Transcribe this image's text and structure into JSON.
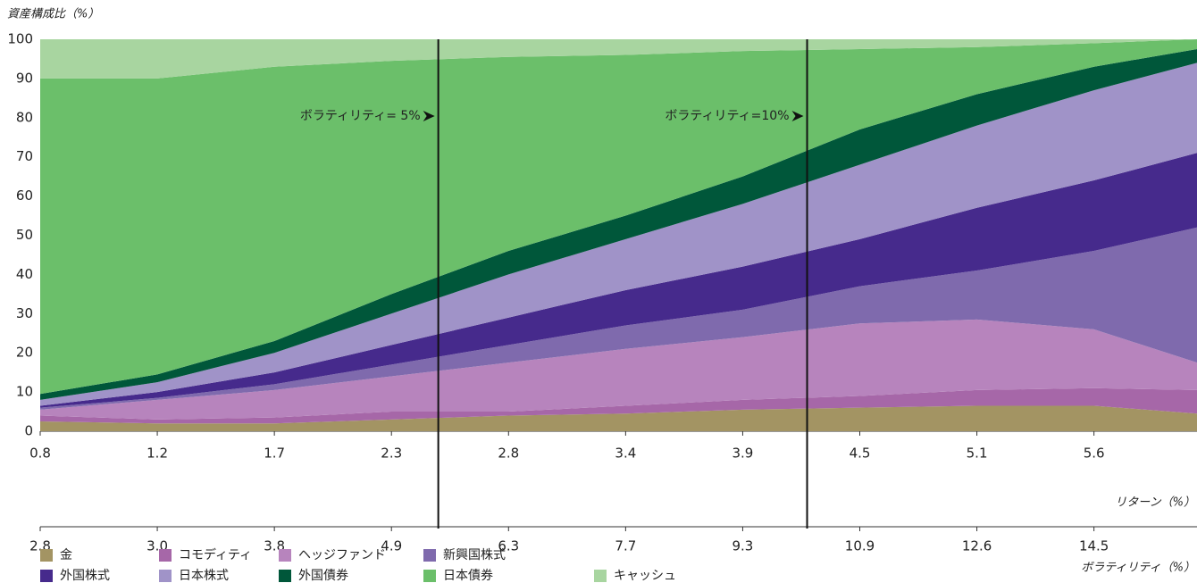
{
  "chart_data": {
    "type": "stacked_area",
    "y_label": "資産構成比（%）",
    "x_label": "リターン（%）",
    "x2_label": "ボラティリティ（%）",
    "categories": [
      "0.8",
      "1.2",
      "1.7",
      "2.3",
      "2.8",
      "3.4",
      "3.9",
      "4.5",
      "5.1",
      "5.6",
      null
    ],
    "x2_categories": [
      "2.8",
      "3.0",
      "3.8",
      "4.9",
      "6.3",
      "7.7",
      "9.3",
      "10.9",
      "12.6",
      "14.5",
      null
    ],
    "x": [
      0,
      1,
      2,
      3,
      4,
      5,
      6,
      7,
      8,
      9,
      9.88
    ],
    "xlim": [
      0,
      9.88
    ],
    "ylim": [
      0,
      100
    ],
    "yticks": [
      0,
      10,
      20,
      30,
      40,
      50,
      60,
      70,
      80,
      90,
      100
    ],
    "annotations": [
      {
        "text": "ボラティリティ= 5%",
        "x": 3.4
      },
      {
        "text": "ボラティリティ=10%",
        "x": 6.55
      }
    ],
    "series": [
      {
        "name": "金",
        "color": "#a39463",
        "values": [
          2.5,
          2,
          2,
          3,
          4,
          4.5,
          5.5,
          6,
          6.5,
          6.5,
          4.5
        ]
      },
      {
        "name": "コモディティ",
        "color": "#a667a8",
        "values": [
          1.5,
          1,
          1.5,
          2,
          1,
          2,
          2.5,
          3,
          4,
          4.5,
          6
        ]
      },
      {
        "name": "ヘッジファンド",
        "color": "#b784bd",
        "values": [
          1.5,
          5,
          7,
          9,
          12.5,
          14.5,
          16,
          18.5,
          18,
          15,
          7
        ]
      },
      {
        "name": "新興国株式",
        "color": "#7f6aad",
        "values": [
          0.5,
          0.5,
          1.5,
          3,
          4.5,
          6,
          7,
          9.5,
          12.5,
          20,
          34.5
        ]
      },
      {
        "name": "外国株式",
        "color": "#462a8c",
        "values": [
          0.5,
          1.5,
          3,
          5,
          7,
          9,
          11,
          12,
          16,
          18,
          19
        ]
      },
      {
        "name": "日本株式",
        "color": "#a093c8",
        "values": [
          1.5,
          2.5,
          5,
          8,
          11,
          13,
          16,
          19,
          21,
          23,
          23
        ]
      },
      {
        "name": "外国債券",
        "color": "#00573a",
        "values": [
          1.5,
          2,
          3,
          5,
          6,
          6,
          7,
          9,
          8,
          6,
          3.5
        ]
      },
      {
        "name": "日本債券",
        "color": "#6bbf6a",
        "values": [
          80.5,
          75.5,
          70,
          59.5,
          49.5,
          41,
          32,
          20.5,
          12,
          6,
          2.5
        ]
      },
      {
        "name": "キャッシュ",
        "color": "#a8d5a0",
        "values": [
          10,
          10,
          7,
          5.5,
          4.5,
          4,
          3,
          2.5,
          2,
          1,
          0
        ]
      }
    ]
  }
}
